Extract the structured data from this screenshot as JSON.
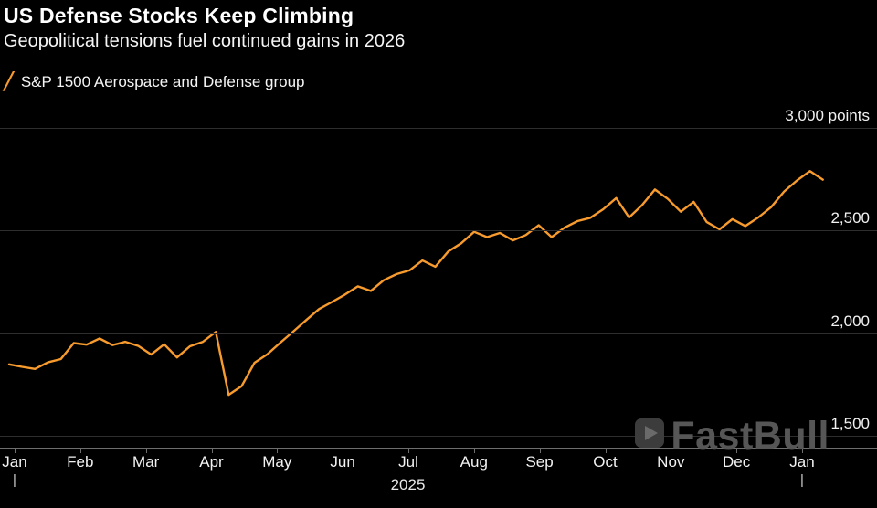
{
  "chart_data": {
    "type": "line",
    "title": "US Defense Stocks Keep Climbing",
    "subtitle": "Geopolitical tensions fuel continued gains in 2026",
    "legend": [
      {
        "label": "S&P 1500 Aerospace and Defense group",
        "swatch": "╱",
        "color": "#f79b2e"
      }
    ],
    "x_axis": {
      "tick_labels": [
        "Jan",
        "Feb",
        "Mar",
        "Apr",
        "May",
        "Jun",
        "Jul",
        "Aug",
        "Sep",
        "Oct",
        "Nov",
        "Dec",
        "Jan"
      ],
      "year_label": "2025",
      "boundary_marker": "|",
      "boundary_tick_indices": [
        0,
        12
      ],
      "x_range_months": [
        0,
        12.4
      ]
    },
    "y_axis": {
      "side": "right",
      "tick_labels": [
        "3,000 points",
        "2,500",
        "2,000",
        "1,500"
      ],
      "tick_values": [
        3000,
        2500,
        2000,
        1500
      ],
      "ylim": [
        1500,
        3000
      ],
      "grid": true
    },
    "series": [
      {
        "name": "S&P 1500 Aerospace and Defense group",
        "color": "#f79b2e",
        "x_start_month": 0,
        "x_end_month": 12.4,
        "values": [
          1848,
          1836,
          1826,
          1858,
          1874,
          1952,
          1944,
          1974,
          1942,
          1958,
          1938,
          1896,
          1946,
          1882,
          1936,
          1958,
          2006,
          1700,
          1742,
          1856,
          1898,
          1954,
          2008,
          2064,
          2118,
          2152,
          2188,
          2228,
          2206,
          2258,
          2288,
          2306,
          2354,
          2324,
          2398,
          2438,
          2494,
          2468,
          2488,
          2452,
          2478,
          2526,
          2468,
          2514,
          2546,
          2562,
          2604,
          2658,
          2564,
          2624,
          2700,
          2654,
          2592,
          2640,
          2542,
          2506,
          2556,
          2522,
          2564,
          2614,
          2690,
          2744,
          2790,
          2748
        ]
      }
    ],
    "watermark": "FastBull",
    "colors": {
      "background": "#000000",
      "line": "#f79b2e",
      "gridline": "#2e2e2e",
      "axis": "#6e6e6e",
      "text": "#f2f2f2"
    }
  }
}
